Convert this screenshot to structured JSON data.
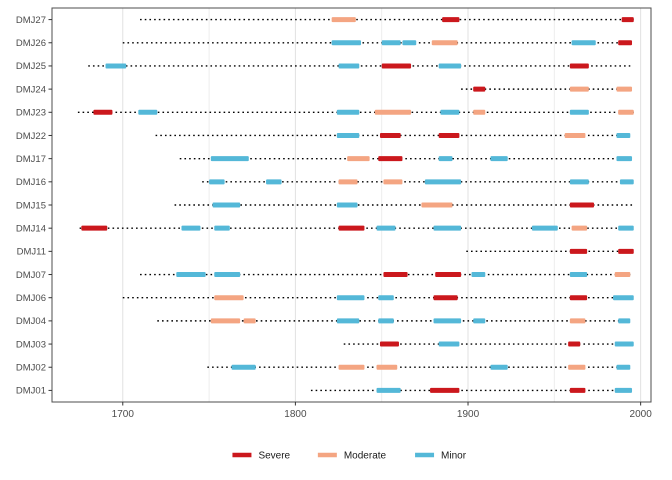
{
  "figure": {
    "background": "#ffffff"
  },
  "colors": {
    "grid_major": "#e1e1e1",
    "grid_minor": "#ededed",
    "panel_border": "#4d4d4d",
    "axis_text": "#4d4d4d",
    "tick_mark": "#333333",
    "record_line": "#000000",
    "legend_text": "#1a1a1a"
  },
  "chart_data": {
    "type": "gantt",
    "title": "",
    "xlabel": "",
    "ylabel": "",
    "grid": "on",
    "legend_position": "bottom",
    "x_range": [
      1659,
      2006
    ],
    "x_ticks": [
      1700,
      1800,
      1900,
      2000
    ],
    "x_minor_gridlines": [
      1750,
      1850,
      1950
    ],
    "legend": [
      {
        "label": "Severe",
        "color": "#CB181D"
      },
      {
        "label": "Moderate",
        "color": "#F4A582"
      },
      {
        "label": "Minor",
        "color": "#54B8D8"
      }
    ],
    "categories": [
      "DMJ27",
      "DMJ26",
      "DMJ25",
      "DMJ24",
      "DMJ23",
      "DMJ22",
      "DMJ17",
      "DMJ16",
      "DMJ15",
      "DMJ14",
      "DMJ11",
      "DMJ07",
      "DMJ06",
      "DMJ04",
      "DMJ03",
      "DMJ02",
      "DMJ01"
    ],
    "rows": [
      {
        "station": "DMJ27",
        "record_span": [
          1710,
          1996
        ],
        "events": [
          {
            "severity": "Moderate",
            "start": 1821,
            "end": 1835
          },
          {
            "severity": "Severe",
            "start": 1885,
            "end": 1895
          },
          {
            "severity": "Severe",
            "start": 1989,
            "end": 1996
          }
        ]
      },
      {
        "station": "DMJ26",
        "record_span": [
          1700,
          1995
        ],
        "events": [
          {
            "severity": "Minor",
            "start": 1821,
            "end": 1838
          },
          {
            "severity": "Minor",
            "start": 1850,
            "end": 1861
          },
          {
            "severity": "Minor",
            "start": 1862,
            "end": 1870
          },
          {
            "severity": "Moderate",
            "start": 1879,
            "end": 1894
          },
          {
            "severity": "Minor",
            "start": 1960,
            "end": 1974
          },
          {
            "severity": "Severe",
            "start": 1987,
            "end": 1995
          }
        ]
      },
      {
        "station": "DMJ25",
        "record_span": [
          1680,
          1994
        ],
        "events": [
          {
            "severity": "Minor",
            "start": 1690,
            "end": 1702
          },
          {
            "severity": "Minor",
            "start": 1825,
            "end": 1837
          },
          {
            "severity": "Severe",
            "start": 1850,
            "end": 1867
          },
          {
            "severity": "Minor",
            "start": 1883,
            "end": 1896
          },
          {
            "severity": "Severe",
            "start": 1959,
            "end": 1970
          }
        ]
      },
      {
        "station": "DMJ24",
        "record_span": [
          1896,
          1995
        ],
        "events": [
          {
            "severity": "Severe",
            "start": 1903,
            "end": 1910
          },
          {
            "severity": "Moderate",
            "start": 1959,
            "end": 1970
          },
          {
            "severity": "Moderate",
            "start": 1986,
            "end": 1995
          }
        ]
      },
      {
        "station": "DMJ23",
        "record_span": [
          1674,
          1996
        ],
        "events": [
          {
            "severity": "Severe",
            "start": 1683,
            "end": 1694
          },
          {
            "severity": "Minor",
            "start": 1709,
            "end": 1720
          },
          {
            "severity": "Minor",
            "start": 1824,
            "end": 1837
          },
          {
            "severity": "Moderate",
            "start": 1846,
            "end": 1867
          },
          {
            "severity": "Minor",
            "start": 1884,
            "end": 1895
          },
          {
            "severity": "Moderate",
            "start": 1903,
            "end": 1910
          },
          {
            "severity": "Minor",
            "start": 1959,
            "end": 1970
          },
          {
            "severity": "Moderate",
            "start": 1987,
            "end": 1996
          }
        ]
      },
      {
        "station": "DMJ22",
        "record_span": [
          1719,
          1994
        ],
        "events": [
          {
            "severity": "Minor",
            "start": 1824,
            "end": 1837
          },
          {
            "severity": "Severe",
            "start": 1849,
            "end": 1861
          },
          {
            "severity": "Severe",
            "start": 1883,
            "end": 1895
          },
          {
            "severity": "Moderate",
            "start": 1956,
            "end": 1968
          },
          {
            "severity": "Minor",
            "start": 1986,
            "end": 1994
          }
        ]
      },
      {
        "station": "DMJ17",
        "record_span": [
          1733,
          1995
        ],
        "events": [
          {
            "severity": "Minor",
            "start": 1751,
            "end": 1773
          },
          {
            "severity": "Moderate",
            "start": 1830,
            "end": 1843
          },
          {
            "severity": "Severe",
            "start": 1848,
            "end": 1862
          },
          {
            "severity": "Minor",
            "start": 1883,
            "end": 1891
          },
          {
            "severity": "Minor",
            "start": 1913,
            "end": 1923
          },
          {
            "severity": "Minor",
            "start": 1986,
            "end": 1995
          }
        ]
      },
      {
        "station": "DMJ16",
        "record_span": [
          1746,
          1996
        ],
        "events": [
          {
            "severity": "Minor",
            "start": 1750,
            "end": 1759
          },
          {
            "severity": "Minor",
            "start": 1783,
            "end": 1792
          },
          {
            "severity": "Moderate",
            "start": 1825,
            "end": 1836
          },
          {
            "severity": "Moderate",
            "start": 1851,
            "end": 1862
          },
          {
            "severity": "Minor",
            "start": 1875,
            "end": 1896
          },
          {
            "severity": "Minor",
            "start": 1959,
            "end": 1970
          },
          {
            "severity": "Minor",
            "start": 1988,
            "end": 1996
          }
        ]
      },
      {
        "station": "DMJ15",
        "record_span": [
          1730,
          1996
        ],
        "events": [
          {
            "severity": "Minor",
            "start": 1752,
            "end": 1768
          },
          {
            "severity": "Minor",
            "start": 1824,
            "end": 1836
          },
          {
            "severity": "Moderate",
            "start": 1873,
            "end": 1891
          },
          {
            "severity": "Severe",
            "start": 1959,
            "end": 1973
          }
        ]
      },
      {
        "station": "DMJ14",
        "record_span": [
          1675,
          1996
        ],
        "events": [
          {
            "severity": "Severe",
            "start": 1676,
            "end": 1691
          },
          {
            "severity": "Minor",
            "start": 1734,
            "end": 1745
          },
          {
            "severity": "Minor",
            "start": 1753,
            "end": 1762
          },
          {
            "severity": "Severe",
            "start": 1825,
            "end": 1840
          },
          {
            "severity": "Minor",
            "start": 1847,
            "end": 1858
          },
          {
            "severity": "Minor",
            "start": 1880,
            "end": 1896
          },
          {
            "severity": "Minor",
            "start": 1937,
            "end": 1952
          },
          {
            "severity": "Moderate",
            "start": 1960,
            "end": 1969
          },
          {
            "severity": "Minor",
            "start": 1987,
            "end": 1996
          }
        ]
      },
      {
        "station": "DMJ11",
        "record_span": [
          1899,
          1996
        ],
        "events": [
          {
            "severity": "Severe",
            "start": 1959,
            "end": 1969
          },
          {
            "severity": "Severe",
            "start": 1987,
            "end": 1996
          }
        ]
      },
      {
        "station": "DMJ07",
        "record_span": [
          1710,
          1994
        ],
        "events": [
          {
            "severity": "Minor",
            "start": 1731,
            "end": 1748
          },
          {
            "severity": "Minor",
            "start": 1753,
            "end": 1768
          },
          {
            "severity": "Severe",
            "start": 1851,
            "end": 1865
          },
          {
            "severity": "Severe",
            "start": 1881,
            "end": 1896
          },
          {
            "severity": "Minor",
            "start": 1902,
            "end": 1910
          },
          {
            "severity": "Minor",
            "start": 1959,
            "end": 1969
          },
          {
            "severity": "Moderate",
            "start": 1985,
            "end": 1994
          }
        ]
      },
      {
        "station": "DMJ06",
        "record_span": [
          1700,
          1996
        ],
        "events": [
          {
            "severity": "Moderate",
            "start": 1753,
            "end": 1770
          },
          {
            "severity": "Minor",
            "start": 1824,
            "end": 1840
          },
          {
            "severity": "Minor",
            "start": 1848,
            "end": 1857
          },
          {
            "severity": "Severe",
            "start": 1880,
            "end": 1894
          },
          {
            "severity": "Severe",
            "start": 1959,
            "end": 1969
          },
          {
            "severity": "Minor",
            "start": 1984,
            "end": 1996
          }
        ]
      },
      {
        "station": "DMJ04",
        "record_span": [
          1720,
          1994
        ],
        "events": [
          {
            "severity": "Moderate",
            "start": 1751,
            "end": 1768
          },
          {
            "severity": "Moderate",
            "start": 1770,
            "end": 1777
          },
          {
            "severity": "Minor",
            "start": 1824,
            "end": 1837
          },
          {
            "severity": "Minor",
            "start": 1848,
            "end": 1857
          },
          {
            "severity": "Minor",
            "start": 1880,
            "end": 1896
          },
          {
            "severity": "Minor",
            "start": 1903,
            "end": 1910
          },
          {
            "severity": "Moderate",
            "start": 1959,
            "end": 1968
          },
          {
            "severity": "Minor",
            "start": 1987,
            "end": 1994
          }
        ]
      },
      {
        "station": "DMJ03",
        "record_span": [
          1828,
          1996
        ],
        "events": [
          {
            "severity": "Severe",
            "start": 1849,
            "end": 1860
          },
          {
            "severity": "Minor",
            "start": 1883,
            "end": 1895
          },
          {
            "severity": "Severe",
            "start": 1958,
            "end": 1965
          },
          {
            "severity": "Minor",
            "start": 1985,
            "end": 1996
          }
        ]
      },
      {
        "station": "DMJ02",
        "record_span": [
          1749,
          1994
        ],
        "events": [
          {
            "severity": "Minor",
            "start": 1763,
            "end": 1777
          },
          {
            "severity": "Moderate",
            "start": 1825,
            "end": 1840
          },
          {
            "severity": "Moderate",
            "start": 1847,
            "end": 1859
          },
          {
            "severity": "Minor",
            "start": 1913,
            "end": 1923
          },
          {
            "severity": "Moderate",
            "start": 1958,
            "end": 1968
          },
          {
            "severity": "Minor",
            "start": 1986,
            "end": 1994
          }
        ]
      },
      {
        "station": "DMJ01",
        "record_span": [
          1809,
          1995
        ],
        "events": [
          {
            "severity": "Minor",
            "start": 1847,
            "end": 1861
          },
          {
            "severity": "Severe",
            "start": 1878,
            "end": 1895
          },
          {
            "severity": "Severe",
            "start": 1959,
            "end": 1968
          },
          {
            "severity": "Minor",
            "start": 1985,
            "end": 1995
          }
        ]
      }
    ]
  }
}
